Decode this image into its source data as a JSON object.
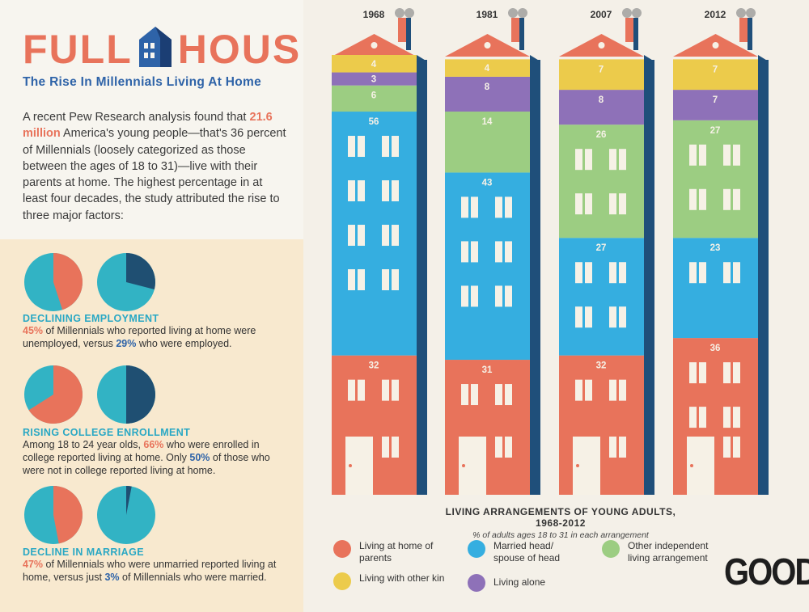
{
  "header": {
    "title_left": "FULL",
    "title_right": "HOUSE",
    "subtitle": "The Rise In Millennials Living At Home"
  },
  "intro": {
    "before": "A recent Pew Research analysis found that ",
    "highlight": "21.6 million",
    "after": " America's young people—that's 36 percent of Millennials (loosely categorized as those between the ages of 18 to 31)—live with their parents at home. The highest percentage in at least four decades, the study attributed the rise to three major factors:"
  },
  "factors": [
    {
      "title": "DECLINING EMPLOYMENT",
      "p1": "45%",
      "t1": " of Millennials who reported living at home were unemployed, versus ",
      "p2": "29%",
      "t2": " who were employed.",
      "pie_values": [
        45,
        29
      ]
    },
    {
      "title": "RISING COLLEGE ENROLLMENT",
      "t0": "Among 18 to 24 year olds, ",
      "p1": "66%",
      "t1": " who were enrolled in college reported living at home. Only ",
      "p2": "50%",
      "t2": " of those who were not in college reported living at home.",
      "pie_values": [
        66,
        50
      ]
    },
    {
      "title": "DECLINE IN MARRIAGE",
      "p1": "47%",
      "t1": " of Millennials who were unmarried reported living at home, versus just ",
      "p2": "3%",
      "t2": " of Millennials who were married.",
      "pie_values": [
        47,
        3
      ]
    }
  ],
  "colors": {
    "parents": "#e8735b",
    "married": "#35aee0",
    "other_independent": "#9ccd82",
    "other_kin": "#eccb4b",
    "alone": "#8e71b8",
    "pie_dark": "#1f4f72",
    "pie_teal": "#32b3c4",
    "shadow": "#1f4f7a"
  },
  "chart_data": {
    "type": "bar",
    "stacked": true,
    "title": "LIVING ARRANGEMENTS OF YOUNG ADULTS, 1968-2012",
    "subtitle": "% of adults ages 18 to 31 in each arrangement",
    "categories": [
      "1968",
      "1981",
      "2007",
      "2012"
    ],
    "series": [
      {
        "name": "Living at home of parents",
        "key": "parents",
        "values": [
          32,
          31,
          32,
          36
        ]
      },
      {
        "name": "Married head/ spouse of head",
        "key": "married",
        "values": [
          56,
          43,
          27,
          23
        ]
      },
      {
        "name": "Other independent living arrangement",
        "key": "other_independent",
        "values": [
          6,
          14,
          26,
          27
        ]
      },
      {
        "name": "Living alone",
        "key": "alone",
        "values": [
          3,
          8,
          8,
          7
        ]
      },
      {
        "name": "Living with other kin",
        "key": "other_kin",
        "values": [
          4,
          4,
          7,
          7
        ]
      }
    ],
    "legend": [
      {
        "key": "parents",
        "label": "Living at home of parents"
      },
      {
        "key": "married",
        "label": "Married head/ spouse of head"
      },
      {
        "key": "other_independent",
        "label": "Other independent living arrangement"
      },
      {
        "key": "other_kin",
        "label": "Living with other kin"
      },
      {
        "key": "alone",
        "label": "Living alone"
      }
    ]
  },
  "logo": "GOOD"
}
